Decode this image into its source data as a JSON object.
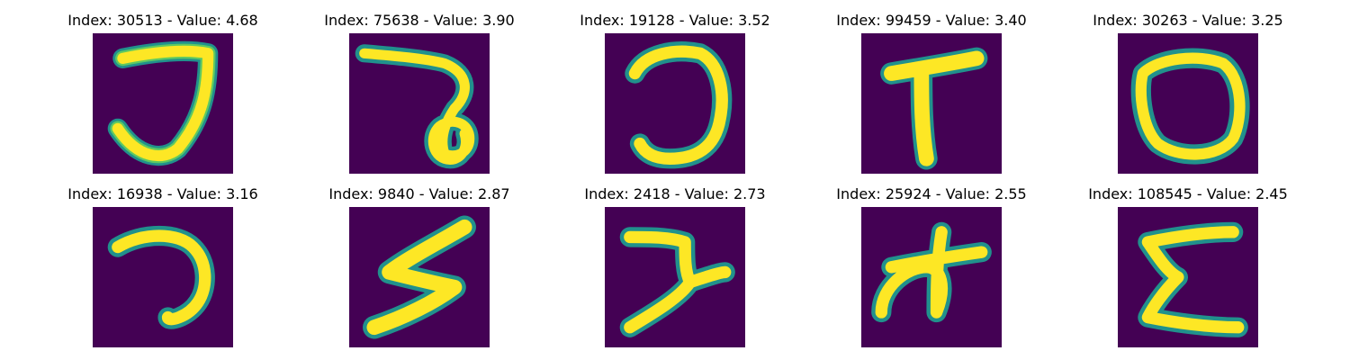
{
  "colors": {
    "background": "#440154",
    "stroke_edge": "#21918c",
    "stroke_mid": "#5ec962",
    "stroke_core": "#fde725"
  },
  "panels": [
    {
      "title": "Index: 30513 - Value: 4.68",
      "glyph": "hook-shape"
    },
    {
      "title": "Index: 75638 - Value: 3.90",
      "glyph": "loop-hook-shape"
    },
    {
      "title": "Index: 19128 - Value: 3.52",
      "glyph": "reverse-c-shape"
    },
    {
      "title": "Index: 99459 - Value: 3.40",
      "glyph": "t-shape"
    },
    {
      "title": "Index: 30263 - Value: 3.25",
      "glyph": "o-shape"
    },
    {
      "title": "Index: 16938 - Value: 3.16",
      "glyph": "reverse-c-hook-shape"
    },
    {
      "title": "Index: 9840 - Value: 2.87",
      "glyph": "zigzag-s-shape"
    },
    {
      "title": "Index: 2418 - Value: 2.73",
      "glyph": "bent-y-shape"
    },
    {
      "title": "Index: 25924 - Value: 2.55",
      "glyph": "cross-loop-shape"
    },
    {
      "title": "Index: 108545 - Value: 2.45",
      "glyph": "epsilon-shape"
    }
  ]
}
